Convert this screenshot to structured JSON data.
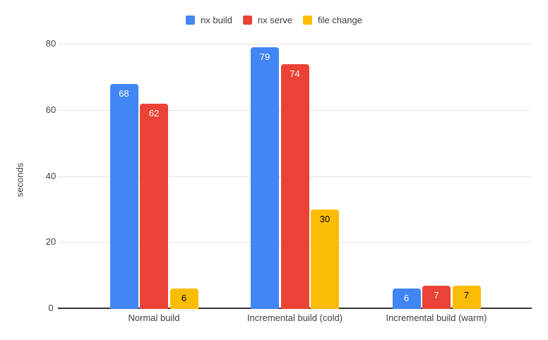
{
  "chart_data": {
    "type": "bar",
    "title": "",
    "xlabel": "",
    "ylabel": "seconds",
    "categories": [
      "Normal build",
      "Incremental build (cold)",
      "Incremental build (warm)"
    ],
    "series": [
      {
        "name": "nx build",
        "color": "#4285F4",
        "label_color": "#ffffff",
        "values": [
          68,
          79,
          6
        ]
      },
      {
        "name": "nx serve",
        "color": "#EA4335",
        "label_color": "#ffffff",
        "values": [
          62,
          74,
          7
        ]
      },
      {
        "name": "file change",
        "color": "#FBBC04",
        "label_color": "#000000",
        "values": [
          6,
          30,
          7
        ]
      }
    ],
    "yticks": [
      0,
      20,
      40,
      60,
      80
    ],
    "ylim": [
      0,
      80
    ],
    "grid": true,
    "legend_position": "top",
    "gridline_color": "#e6e6e6",
    "axis_line_color": "#333333"
  }
}
